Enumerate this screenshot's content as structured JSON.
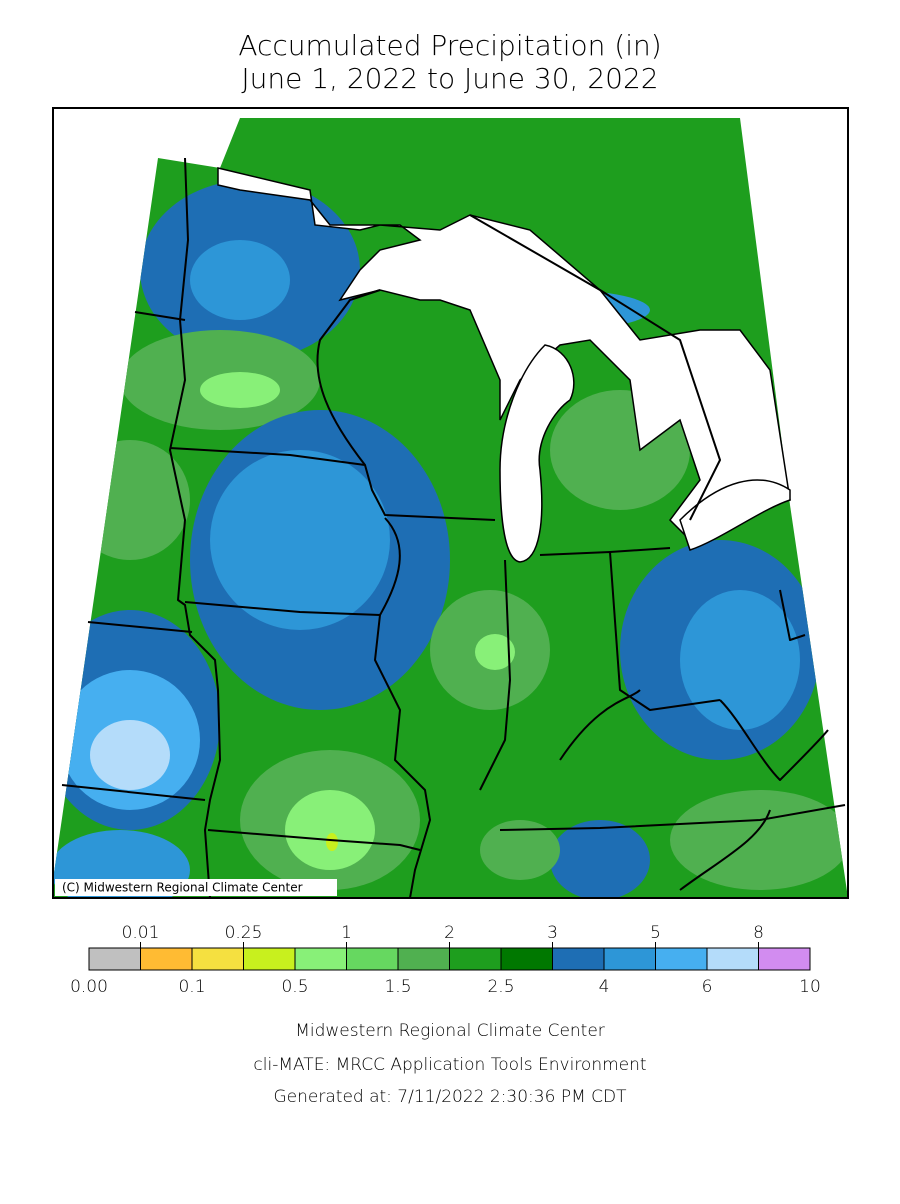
{
  "title": [
    "Accumulated Precipitation (in)",
    "June 1, 2022 to June 30, 2022"
  ],
  "map": {
    "credit": "(C) Midwestern Regional Climate Center"
  },
  "legend": {
    "boundaries": [
      "0.00",
      "0.01",
      "0.1",
      "0.25",
      "0.5",
      "1",
      "1.5",
      "2",
      "2.5",
      "3",
      "4",
      "5",
      "6",
      "8",
      "10"
    ],
    "colors": [
      "#c0c0c0",
      "#ffbb33",
      "#f5e040",
      "#c8f01e",
      "#88f078",
      "#66d860",
      "#50b050",
      "#1e9e1e",
      "#007800",
      "#1e6eb4",
      "#2d96d7",
      "#46aff0",
      "#b4dcfa",
      "#d28cf0"
    ]
  },
  "footer": [
    "Midwestern Regional Climate Center",
    "cli-MATE: MRCC Application Tools Environment",
    "Generated at: 7/11/2022 2:30:36 PM CDT"
  ]
}
